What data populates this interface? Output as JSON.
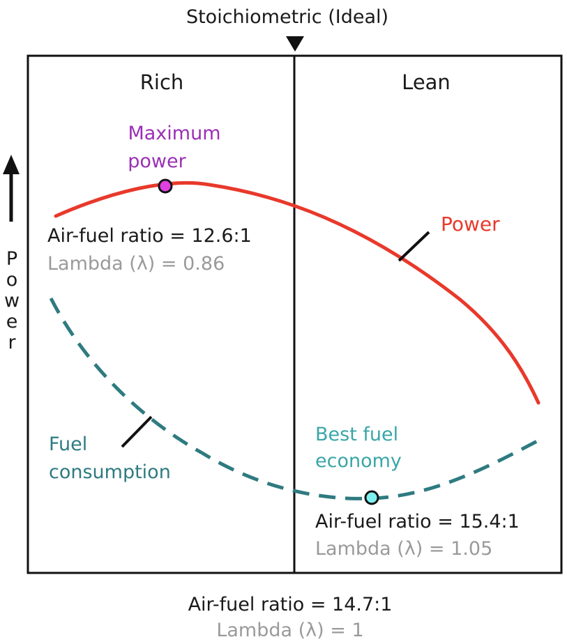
{
  "diagram": {
    "top_label": "Stoichiometric (Ideal)",
    "y_axis_label": "Power",
    "regions": {
      "left": "Rich",
      "right": "Lean"
    },
    "power_curve": {
      "label": "Power",
      "color": "#e8392b"
    },
    "fuel_curve": {
      "label_line1": "Fuel",
      "label_line2": "consumption",
      "color": "#2e7b80"
    },
    "max_power": {
      "title_line1": "Maximum",
      "title_line2": "power",
      "title_color": "#9b2fb5",
      "marker_color": "#e040e0",
      "afr": "Air-fuel ratio = 12.6:1",
      "lambda": "Lambda (λ) = 0.86"
    },
    "best_economy": {
      "title_line1": "Best fuel",
      "title_line2": "economy",
      "title_color": "#3aa6a6",
      "marker_color": "#7ff0f0",
      "afr": "Air-fuel ratio = 15.4:1",
      "lambda": "Lambda (λ) = 1.05"
    },
    "stoich": {
      "afr": "Air-fuel ratio = 14.7:1",
      "lambda": "Lambda (λ) = 1"
    },
    "colors": {
      "text": "#1a1a1a",
      "lambda_text": "#9a9a9a"
    }
  }
}
